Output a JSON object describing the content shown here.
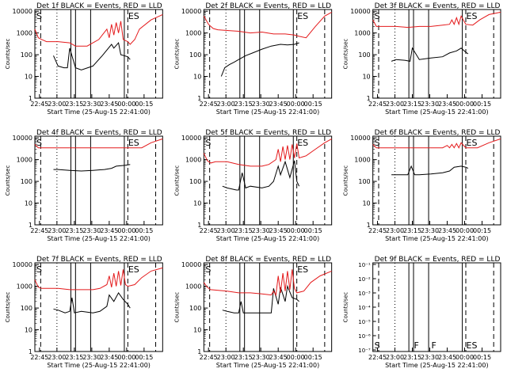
{
  "figure": {
    "x_tick_labels": [
      "22:45",
      "23:00",
      "23:15",
      "23:30",
      "23:45",
      "00:00",
      "00:15"
    ],
    "x_tick_minutes": [
      4,
      19,
      34,
      49,
      64,
      79,
      94
    ],
    "x_range_minutes": [
      0,
      110
    ],
    "xlabel": "Start Time (25-Aug-15 22:41:00)",
    "ylabel": "Counts/sec",
    "y_tick_labels": [
      "1",
      "10",
      "100",
      "1000",
      "10000"
    ],
    "y_tick_values": [
      1,
      10,
      100,
      1000,
      10000
    ],
    "y_range": [
      1,
      12000
    ],
    "y_scale": "log",
    "colors": {
      "events": "#000000",
      "lld": "#e41a1c",
      "axes": "#000000"
    }
  },
  "chart_data": [
    {
      "type": "line",
      "panel": 1,
      "title": "Det 1f BLACK = Events, RED = LLD",
      "series": [
        {
          "name": "Events",
          "x": [
            16,
            20,
            25,
            28,
            30,
            35,
            40,
            50,
            58,
            66,
            68,
            72,
            74,
            80,
            82
          ],
          "y": [
            90,
            30,
            25,
            25,
            200,
            25,
            20,
            30,
            90,
            300,
            200,
            350,
            100,
            80,
            60
          ]
        },
        {
          "name": "LLD",
          "x": [
            0,
            3,
            6,
            10,
            20,
            30,
            35,
            45,
            55,
            62,
            64,
            66,
            68,
            70,
            72,
            74,
            76,
            80,
            82,
            86,
            90,
            100,
            110
          ],
          "y": [
            1500,
            600,
            500,
            400,
            400,
            350,
            250,
            250,
            500,
            1500,
            600,
            2500,
            800,
            3000,
            1000,
            3500,
            500,
            400,
            300,
            500,
            1500,
            4000,
            7000
          ]
        }
      ],
      "markers": [
        {
          "label": "S",
          "x": 0
        },
        {
          "label": "ES",
          "x": 79
        }
      ]
    },
    {
      "type": "line",
      "panel": 2,
      "title": "Det 2f BLACK = Events, RED = LLD",
      "series": [
        {
          "name": "Events",
          "x": [
            15,
            18,
            22,
            26,
            30,
            36,
            42,
            50,
            58,
            66,
            72,
            78,
            82
          ],
          "y": [
            10,
            25,
            35,
            45,
            60,
            90,
            120,
            180,
            250,
            300,
            280,
            300,
            350
          ]
        },
        {
          "name": "LLD",
          "x": [
            0,
            4,
            8,
            12,
            20,
            30,
            40,
            50,
            60,
            70,
            78,
            82,
            88,
            96,
            104,
            110
          ],
          "y": [
            6000,
            2500,
            1600,
            1400,
            1300,
            1200,
            1000,
            1100,
            900,
            900,
            800,
            700,
            600,
            2000,
            6000,
            9000
          ]
        }
      ],
      "markers": [
        {
          "label": "ES",
          "x": 79
        }
      ]
    },
    {
      "type": "line",
      "panel": 3,
      "title": "Det 3f BLACK = Events, RED = LLD",
      "series": [
        {
          "name": "Events",
          "x": [
            16,
            20,
            28,
            32,
            34,
            40,
            50,
            60,
            66,
            72,
            76,
            80,
            82
          ],
          "y": [
            50,
            60,
            55,
            50,
            200,
            60,
            70,
            80,
            120,
            150,
            200,
            130,
            110
          ]
        },
        {
          "name": "LLD",
          "x": [
            0,
            3,
            6,
            20,
            30,
            40,
            50,
            60,
            66,
            68,
            70,
            72,
            74,
            76,
            80,
            86,
            92,
            100,
            110
          ],
          "y": [
            4000,
            2000,
            2000,
            2000,
            1800,
            2000,
            2000,
            2300,
            2500,
            4000,
            2500,
            5000,
            2500,
            6000,
            2500,
            2300,
            4000,
            7000,
            9000
          ]
        }
      ],
      "markers": [
        {
          "label": "S",
          "x": 0
        },
        {
          "label": "ES",
          "x": 79
        }
      ]
    },
    {
      "type": "line",
      "panel": 4,
      "title": "Det 4f BLACK = Events, RED = LLD",
      "series": [
        {
          "name": "Events",
          "x": [
            16,
            20,
            30,
            40,
            50,
            60,
            66,
            70,
            78,
            82
          ],
          "y": [
            350,
            350,
            320,
            300,
            320,
            350,
            400,
            500,
            550,
            600
          ]
        },
        {
          "name": "LLD",
          "x": [
            0,
            3,
            6,
            20,
            40,
            60,
            80,
            92,
            100,
            110
          ],
          "y": [
            5000,
            3500,
            3500,
            3500,
            3500,
            3500,
            3500,
            3500,
            6000,
            9000
          ]
        }
      ],
      "markers": [
        {
          "label": "S",
          "x": 0
        },
        {
          "label": "ES",
          "x": 79
        }
      ]
    },
    {
      "type": "line",
      "panel": 5,
      "title": "Det 5f BLACK = Events, RED = LLD",
      "series": [
        {
          "name": "Events",
          "x": [
            16,
            20,
            28,
            30,
            33,
            36,
            40,
            50,
            56,
            60,
            64,
            66,
            70,
            74,
            78,
            80,
            82
          ],
          "y": [
            60,
            50,
            40,
            40,
            250,
            50,
            60,
            50,
            60,
            100,
            500,
            200,
            800,
            150,
            900,
            100,
            60
          ]
        },
        {
          "name": "LLD",
          "x": [
            0,
            3,
            6,
            10,
            20,
            30,
            40,
            50,
            56,
            62,
            64,
            66,
            68,
            70,
            72,
            74,
            76,
            78,
            80,
            82,
            88,
            96,
            104,
            110
          ],
          "y": [
            2000,
            900,
            700,
            800,
            800,
            600,
            500,
            500,
            600,
            1000,
            3000,
            800,
            4000,
            1000,
            4500,
            1000,
            5000,
            1200,
            5500,
            1200,
            1500,
            3000,
            6000,
            9000
          ]
        }
      ],
      "markers": [
        {
          "label": "S",
          "x": 0
        },
        {
          "label": "ES",
          "x": 79
        }
      ]
    },
    {
      "type": "line",
      "panel": 6,
      "title": "Det 6f BLACK = Events, RED = LLD",
      "series": [
        {
          "name": "Events",
          "x": [
            16,
            20,
            30,
            33,
            36,
            40,
            50,
            60,
            66,
            70,
            76,
            80,
            82
          ],
          "y": [
            200,
            200,
            200,
            500,
            200,
            200,
            220,
            250,
            300,
            450,
            500,
            450,
            400
          ]
        },
        {
          "name": "LLD",
          "x": [
            0,
            3,
            6,
            20,
            40,
            60,
            64,
            66,
            68,
            70,
            72,
            74,
            76,
            80,
            90,
            100,
            110
          ],
          "y": [
            5000,
            3500,
            3500,
            3500,
            3500,
            3500,
            4500,
            3500,
            5000,
            3500,
            5500,
            3500,
            6000,
            3500,
            3500,
            6000,
            9000
          ]
        }
      ],
      "markers": [
        {
          "label": "S",
          "x": 0
        },
        {
          "label": "ES",
          "x": 79
        }
      ]
    },
    {
      "type": "line",
      "panel": 7,
      "title": "Det 7f BLACK = Events, RED = LLD",
      "series": [
        {
          "name": "Events",
          "x": [
            16,
            20,
            26,
            30,
            32,
            34,
            40,
            50,
            56,
            62,
            64,
            68,
            72,
            76,
            80,
            82
          ],
          "y": [
            90,
            80,
            60,
            70,
            300,
            60,
            70,
            60,
            70,
            120,
            400,
            200,
            500,
            250,
            150,
            100
          ]
        },
        {
          "name": "LLD",
          "x": [
            0,
            3,
            6,
            20,
            30,
            40,
            50,
            56,
            62,
            64,
            66,
            68,
            70,
            72,
            74,
            76,
            78,
            80,
            86,
            92,
            100,
            110
          ],
          "y": [
            2000,
            900,
            800,
            800,
            700,
            700,
            700,
            800,
            1200,
            3000,
            900,
            4000,
            1000,
            5000,
            1100,
            6000,
            1200,
            1000,
            1200,
            2500,
            5000,
            7000
          ]
        }
      ],
      "markers": [
        {
          "label": "S",
          "x": 0
        },
        {
          "label": "ES",
          "x": 79
        }
      ]
    },
    {
      "type": "line",
      "panel": 8,
      "title": "Det 8f BLACK = Events, RED = LLD",
      "series": [
        {
          "name": "Events",
          "x": [
            16,
            20,
            26,
            30,
            32,
            34,
            40,
            50,
            58,
            60,
            64,
            66,
            70,
            72,
            76,
            80,
            82
          ],
          "y": [
            80,
            70,
            60,
            60,
            200,
            60,
            60,
            60,
            60,
            800,
            150,
            900,
            200,
            1000,
            300,
            250,
            200
          ]
        },
        {
          "name": "LLD",
          "x": [
            0,
            3,
            6,
            20,
            30,
            40,
            50,
            58,
            60,
            62,
            64,
            66,
            68,
            70,
            72,
            74,
            76,
            78,
            80,
            86,
            92,
            100,
            110
          ],
          "y": [
            1500,
            900,
            700,
            600,
            500,
            500,
            450,
            400,
            600,
            400,
            3000,
            500,
            4000,
            600,
            5000,
            700,
            6000,
            800,
            500,
            600,
            1500,
            3000,
            5000
          ]
        }
      ],
      "markers": [
        {
          "label": "S",
          "x": 0
        },
        {
          "label": "ES",
          "x": 79
        }
      ]
    },
    {
      "type": "line",
      "panel": 9,
      "title": "Det 9f BLACK = Events, RED = LLD",
      "series": [],
      "y_scale_override": {
        "tick_labels": [
          "10⁻¹",
          "10⁻²",
          "10⁻³",
          "10⁻⁴",
          "10⁻⁵",
          "10⁻⁶",
          "10⁻⁷"
        ]
      },
      "markers": [
        {
          "label": "S",
          "x": 0
        },
        {
          "label": "F",
          "x": 34
        },
        {
          "label": "F",
          "x": 49
        },
        {
          "label": "ES",
          "x": 79
        }
      ]
    }
  ]
}
